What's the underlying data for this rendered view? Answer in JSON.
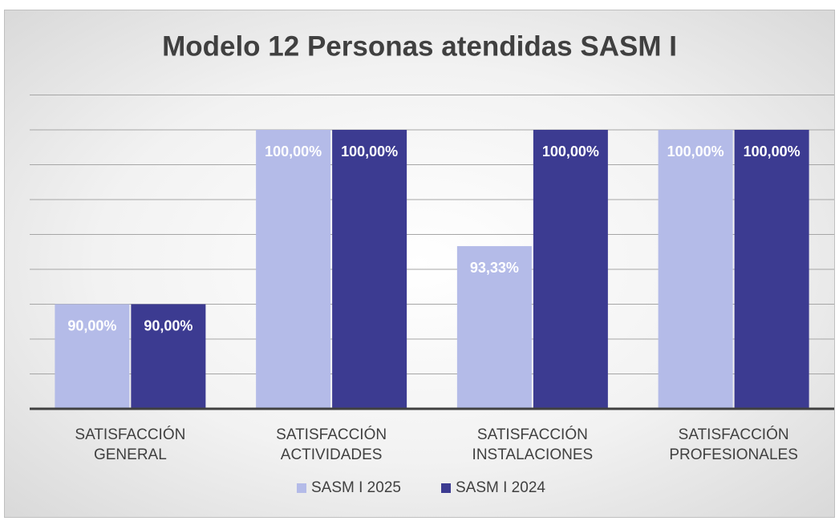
{
  "chart_data": {
    "type": "bar",
    "title": "Modelo 12 Personas atendidas SASM I",
    "categories": [
      "SATISFACCIÓN GENERAL",
      "SATISFACCIÓN ACTIVIDADES",
      "SATISFACCIÓN INSTALACIONES",
      "SATISFACCIÓN PROFESIONALES"
    ],
    "series": [
      {
        "name": "SASM I  2025",
        "color": "#b4bbe8",
        "values": [
          90,
          100,
          93.33,
          100
        ],
        "value_labels": [
          "90,00%",
          "100,00%",
          "93,33%",
          "100,00%"
        ]
      },
      {
        "name": "SASM I  2024",
        "color": "#3c3b91",
        "values": [
          90,
          100,
          100,
          100
        ],
        "value_labels": [
          "90,00%",
          "100,00%",
          "100,00%",
          "100,00%"
        ]
      }
    ],
    "ylim": [
      84,
      102
    ],
    "yticks": [
      84,
      86,
      88,
      90,
      92,
      94,
      96,
      98,
      100,
      102
    ],
    "grid": true,
    "legend": "bottom"
  }
}
